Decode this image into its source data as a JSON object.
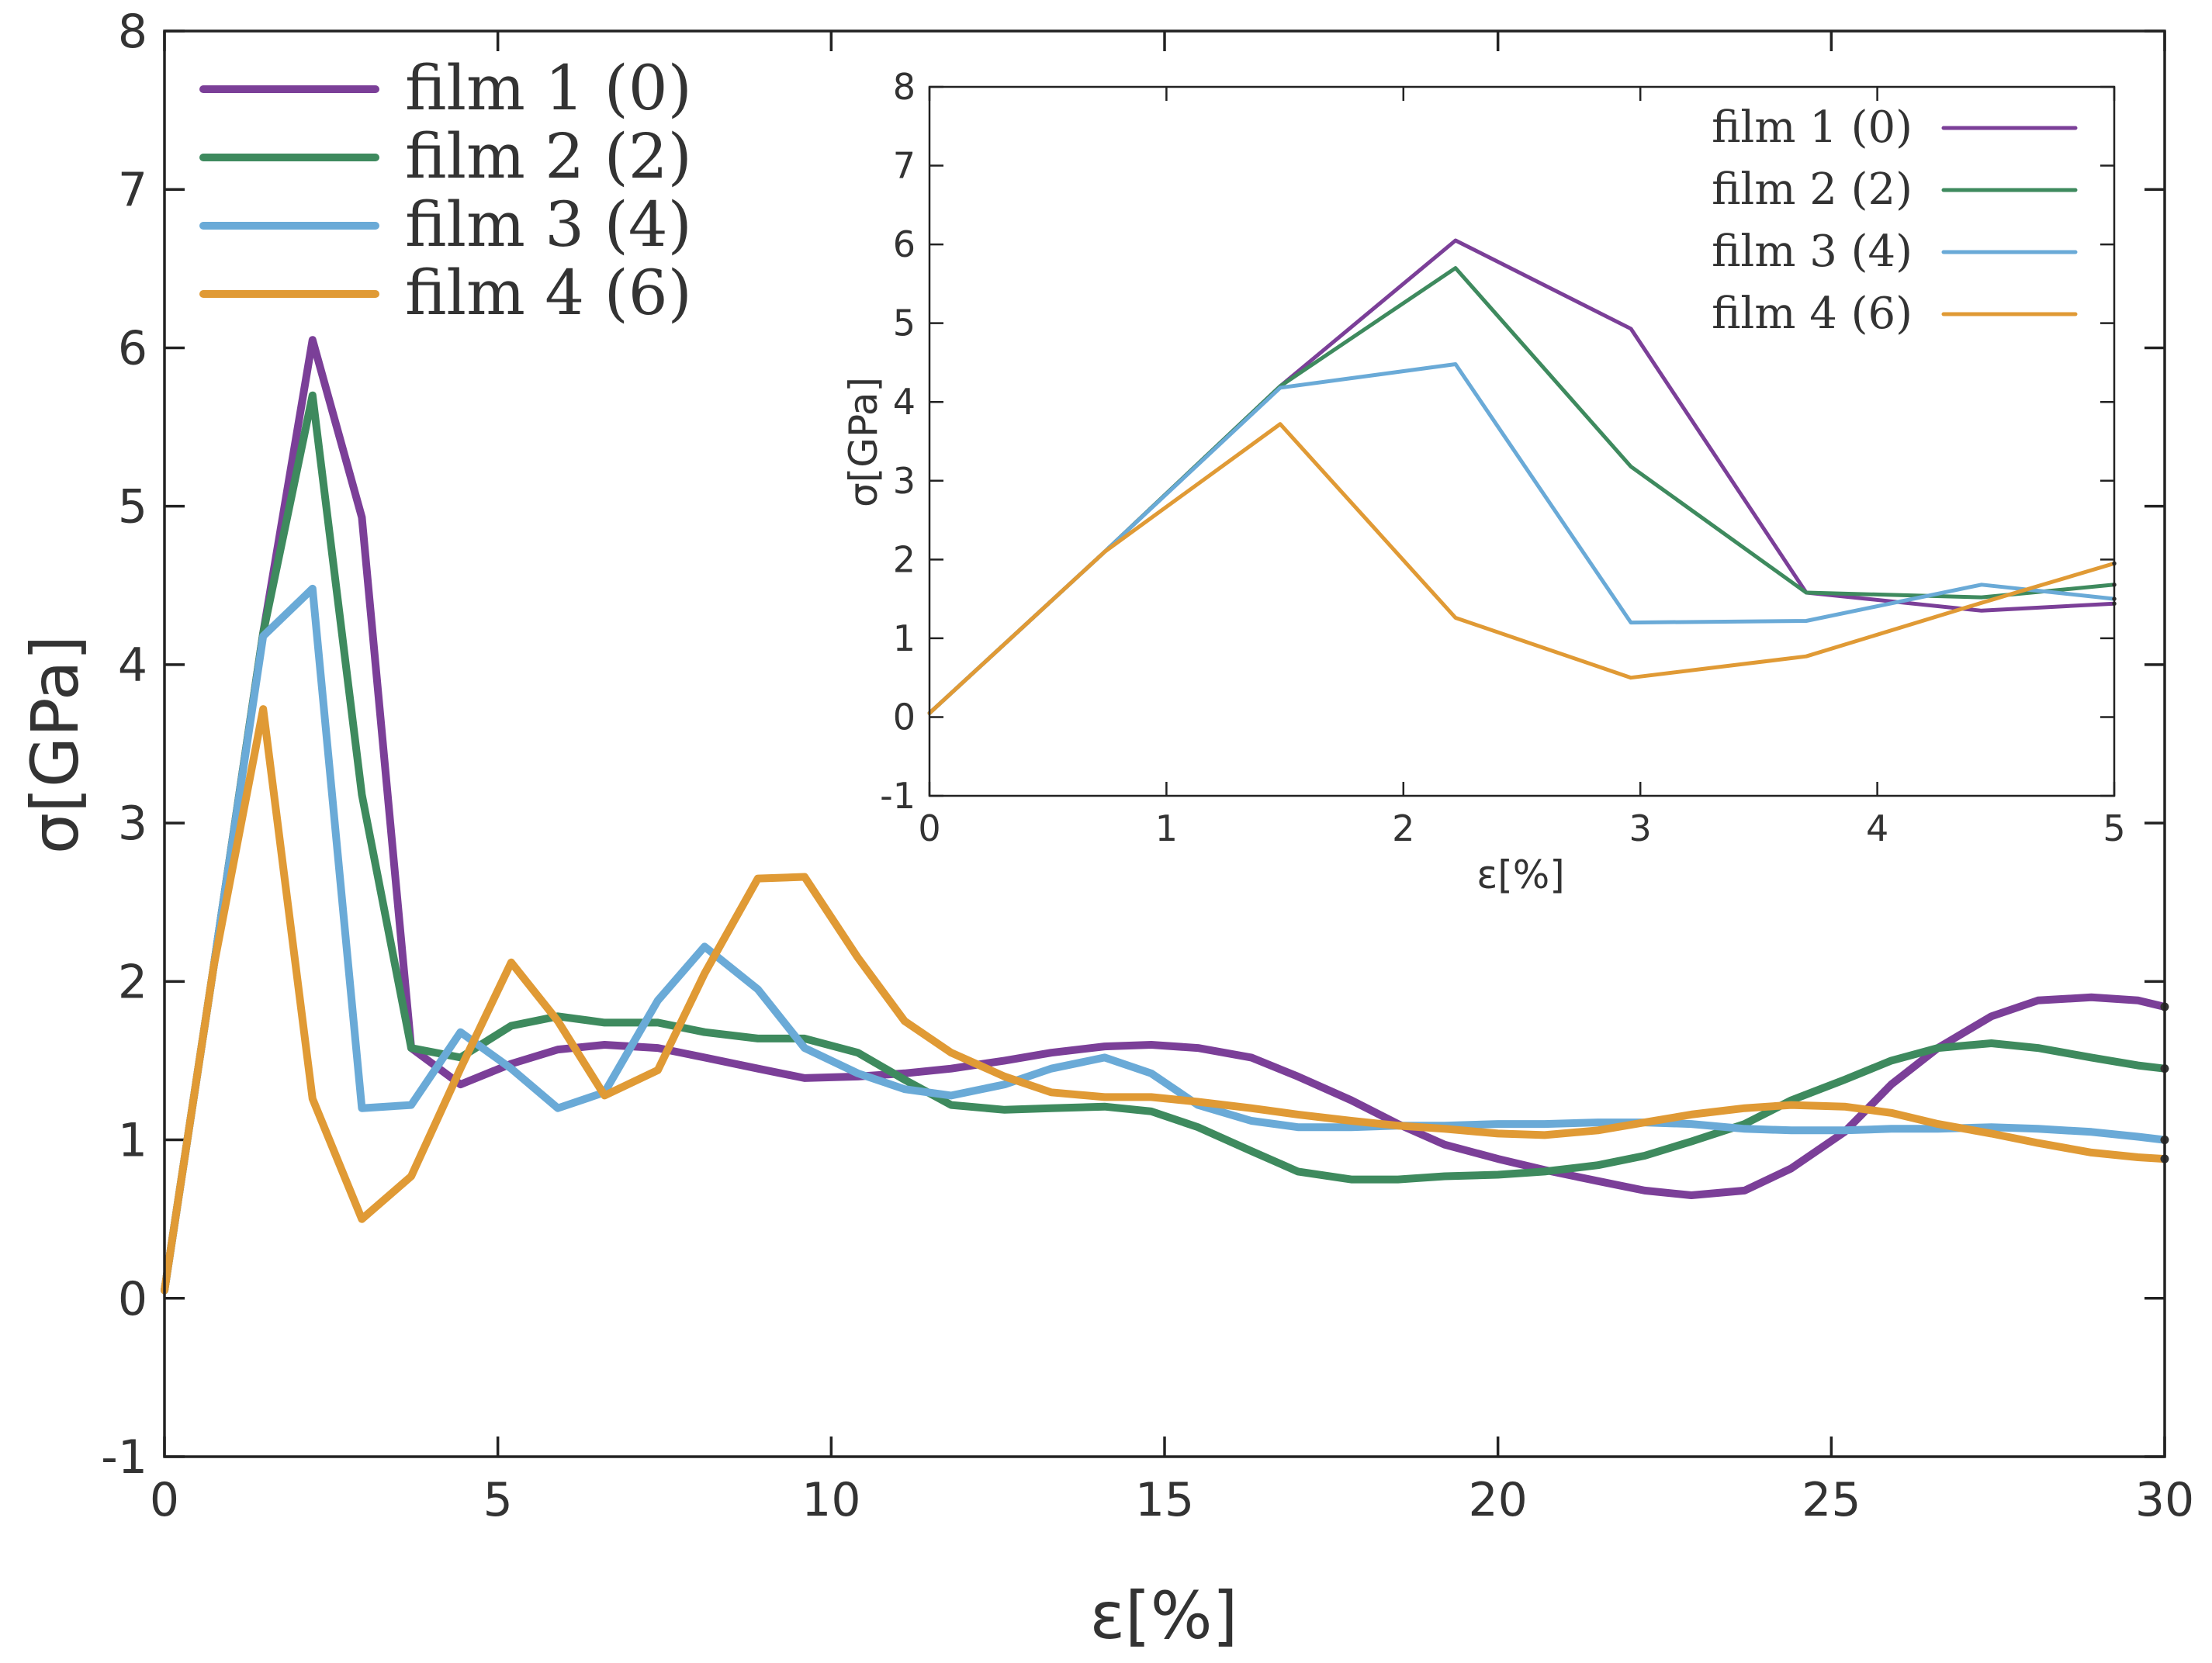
{
  "chart_data": [
    {
      "name": "main",
      "type": "line",
      "xlabel": "ε[%]",
      "ylabel": "σ[GPa]",
      "xlim": [
        0,
        30
      ],
      "ylim": [
        -1,
        8
      ],
      "xticks": [
        "0",
        "5",
        "10",
        "15",
        "20",
        "25",
        "30"
      ],
      "yticks": [
        "-1",
        "0",
        "1",
        "2",
        "3",
        "4",
        "5",
        "6",
        "7",
        "8"
      ],
      "legend_position": "top-left",
      "series": [
        {
          "name": "film 1 (0)",
          "color": "#7b3f98",
          "x": [
            0,
            0.74,
            1.48,
            2.22,
            2.96,
            3.7,
            4.44,
            5.2,
            5.9,
            6.6,
            7.4,
            8.1,
            8.9,
            9.6,
            10.4,
            11.1,
            11.8,
            12.6,
            13.3,
            14.1,
            14.8,
            15.5,
            16.3,
            17.0,
            17.8,
            18.5,
            19.2,
            20.0,
            20.7,
            21.5,
            22.2,
            22.9,
            23.7,
            24.4,
            25.2,
            25.9,
            26.6,
            27.4,
            28.1,
            28.9,
            29.6,
            30
          ],
          "y": [
            0.05,
            2.1,
            4.2,
            6.05,
            4.93,
            1.58,
            1.35,
            1.48,
            1.57,
            1.6,
            1.58,
            1.52,
            1.45,
            1.39,
            1.4,
            1.42,
            1.45,
            1.5,
            1.55,
            1.59,
            1.6,
            1.58,
            1.52,
            1.4,
            1.25,
            1.1,
            0.97,
            0.88,
            0.81,
            0.74,
            0.68,
            0.65,
            0.68,
            0.82,
            1.05,
            1.35,
            1.58,
            1.78,
            1.88,
            1.9,
            1.88,
            1.84
          ]
        },
        {
          "name": "film 2 (2)",
          "color": "#3e8a5e",
          "x": [
            0,
            0.74,
            1.48,
            2.22,
            2.96,
            3.7,
            4.44,
            5.2,
            5.9,
            6.6,
            7.4,
            8.1,
            8.9,
            9.6,
            10.4,
            11.1,
            11.8,
            12.6,
            13.3,
            14.1,
            14.8,
            15.5,
            16.3,
            17.0,
            17.8,
            18.5,
            19.2,
            20.0,
            20.7,
            21.5,
            22.2,
            22.9,
            23.7,
            24.4,
            25.2,
            25.9,
            26.6,
            27.4,
            28.1,
            28.9,
            29.6,
            30
          ],
          "y": [
            0.05,
            2.1,
            4.2,
            5.7,
            3.18,
            1.58,
            1.52,
            1.72,
            1.78,
            1.74,
            1.74,
            1.68,
            1.64,
            1.64,
            1.55,
            1.38,
            1.22,
            1.19,
            1.2,
            1.21,
            1.18,
            1.08,
            0.93,
            0.8,
            0.75,
            0.75,
            0.77,
            0.78,
            0.8,
            0.84,
            0.9,
            0.99,
            1.1,
            1.25,
            1.38,
            1.5,
            1.58,
            1.61,
            1.58,
            1.52,
            1.47,
            1.45
          ]
        },
        {
          "name": "film 3 (4)",
          "color": "#6aaad7",
          "x": [
            0,
            0.74,
            1.48,
            2.22,
            2.96,
            3.7,
            4.44,
            5.2,
            5.9,
            6.6,
            7.4,
            8.1,
            8.9,
            9.6,
            10.4,
            11.1,
            11.8,
            12.6,
            13.3,
            14.1,
            14.8,
            15.5,
            16.3,
            17.0,
            17.8,
            18.5,
            19.2,
            20.0,
            20.7,
            21.5,
            22.2,
            22.9,
            23.7,
            24.4,
            25.2,
            25.9,
            26.6,
            27.4,
            28.1,
            28.9,
            29.6,
            30
          ],
          "y": [
            0.05,
            2.1,
            4.18,
            4.48,
            1.2,
            1.22,
            1.68,
            1.45,
            1.2,
            1.3,
            1.88,
            2.22,
            1.95,
            1.58,
            1.42,
            1.32,
            1.28,
            1.35,
            1.45,
            1.52,
            1.42,
            1.22,
            1.12,
            1.08,
            1.08,
            1.09,
            1.09,
            1.1,
            1.1,
            1.11,
            1.11,
            1.1,
            1.07,
            1.06,
            1.06,
            1.07,
            1.07,
            1.08,
            1.07,
            1.05,
            1.02,
            1.0
          ]
        },
        {
          "name": "film 4 (6)",
          "color": "#e09a35",
          "x": [
            0,
            0.74,
            1.48,
            2.22,
            2.96,
            3.7,
            4.44,
            5.2,
            5.9,
            6.6,
            7.4,
            8.1,
            8.9,
            9.6,
            10.4,
            11.1,
            11.8,
            12.6,
            13.3,
            14.1,
            14.8,
            15.5,
            16.3,
            17.0,
            17.8,
            18.5,
            19.2,
            20.0,
            20.7,
            21.5,
            22.2,
            22.9,
            23.7,
            24.4,
            25.2,
            25.9,
            26.6,
            27.4,
            28.1,
            28.9,
            29.6,
            30
          ],
          "y": [
            0.05,
            2.1,
            3.72,
            1.26,
            0.5,
            0.77,
            1.45,
            2.12,
            1.75,
            1.28,
            1.44,
            2.05,
            2.65,
            2.66,
            2.15,
            1.75,
            1.55,
            1.4,
            1.3,
            1.27,
            1.27,
            1.24,
            1.2,
            1.16,
            1.12,
            1.09,
            1.07,
            1.04,
            1.03,
            1.06,
            1.11,
            1.16,
            1.2,
            1.22,
            1.21,
            1.17,
            1.1,
            1.04,
            0.98,
            0.92,
            0.89,
            0.88
          ]
        }
      ]
    },
    {
      "name": "inset",
      "type": "line",
      "xlabel": "ε[%]",
      "ylabel": "σ[GPa]",
      "xlim": [
        0,
        5
      ],
      "ylim": [
        -1,
        8
      ],
      "xticks": [
        "0",
        "1",
        "2",
        "3",
        "4",
        "5"
      ],
      "yticks": [
        "-1",
        "0",
        "1",
        "2",
        "3",
        "4",
        "5",
        "6",
        "7",
        "8"
      ],
      "legend_position": "top-right",
      "series": [
        {
          "name": "film 1 (0)",
          "color": "#7b3f98",
          "x": [
            0,
            0.74,
            1.48,
            2.22,
            2.96,
            3.7,
            4.44,
            5
          ],
          "y": [
            0.05,
            2.1,
            4.2,
            6.05,
            4.93,
            1.58,
            1.35,
            1.44
          ]
        },
        {
          "name": "film 2 (2)",
          "color": "#3e8a5e",
          "x": [
            0,
            0.74,
            1.48,
            2.22,
            2.96,
            3.7,
            4.44,
            5
          ],
          "y": [
            0.05,
            2.1,
            4.2,
            5.7,
            3.18,
            1.58,
            1.52,
            1.68
          ]
        },
        {
          "name": "film 3 (4)",
          "color": "#6aaad7",
          "x": [
            0,
            0.74,
            1.48,
            2.22,
            2.96,
            3.7,
            4.44,
            5
          ],
          "y": [
            0.05,
            2.1,
            4.18,
            4.48,
            1.2,
            1.22,
            1.68,
            1.5
          ]
        },
        {
          "name": "film 4 (6)",
          "color": "#e09a35",
          "x": [
            0,
            0.74,
            1.48,
            2.22,
            2.96,
            3.7,
            4.44,
            5
          ],
          "y": [
            0.05,
            2.1,
            3.72,
            1.26,
            0.5,
            0.77,
            1.45,
            1.95
          ]
        }
      ]
    }
  ]
}
